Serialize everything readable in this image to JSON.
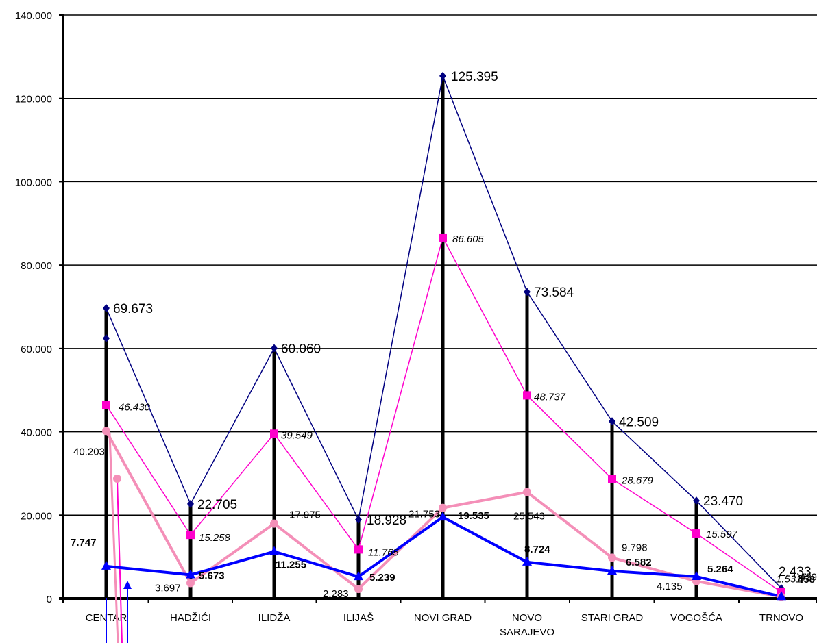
{
  "chart_data": {
    "type": "line",
    "title": "",
    "xlabel": "",
    "ylabel": "",
    "ylim": [
      0,
      140000
    ],
    "yticks": [
      "0",
      "20.000",
      "40.000",
      "60.000",
      "80.000",
      "100.000",
      "120.000",
      "140.000"
    ],
    "ytick_values": [
      0,
      20000,
      40000,
      60000,
      80000,
      100000,
      120000,
      140000
    ],
    "grid": true,
    "legend": "none",
    "categories": [
      "CENTAR",
      "HADŽIĆI",
      "ILIDŽA",
      "ILIJAŠ",
      "NOVI GRAD",
      "NOVO SARAJEVO",
      "STARI GRAD",
      "VOGOŠĆA",
      "TRNOVO"
    ],
    "category_lines": [
      [
        "CENTAR"
      ],
      [
        "HADŽIĆI"
      ],
      [
        "ILIDŽA"
      ],
      [
        "ILIJAŠ"
      ],
      [
        "NOVI GRAD"
      ],
      [
        "NOVO",
        "SARAJEVO"
      ],
      [
        "STARI GRAD"
      ],
      [
        "VOGOŠĆA"
      ],
      [
        "TRNOVO"
      ]
    ],
    "series": [
      {
        "key": "navy",
        "color": "#000080",
        "marker": "diamond",
        "values": [
          69673,
          22705,
          60060,
          18928,
          125395,
          73584,
          42509,
          23470,
          2433
        ],
        "labels": [
          "69.673",
          "22.705",
          "60.060",
          "18.928",
          "125.395",
          "73.584",
          "42.509",
          "23.470",
          "2.433"
        ],
        "label_style": "large"
      },
      {
        "key": "magenta",
        "color": "#ff00cc",
        "marker": "square",
        "values": [
          46430,
          15258,
          39549,
          11765,
          86605,
          48737,
          28679,
          15597,
          1531
        ],
        "labels": [
          "46.430",
          "15.258",
          "39.549",
          "11.765",
          "86.605",
          "48.737",
          "28.679",
          "15.597",
          "1.531"
        ],
        "label_style": "italic"
      },
      {
        "key": "pink",
        "color": "#f48fb8",
        "marker": "circle",
        "values": [
          40203,
          3697,
          17975,
          2283,
          21753,
          25543,
          9798,
          4135,
          429
        ],
        "labels": [
          "40.203",
          "3.697",
          "17.975",
          "2.283",
          "21.753",
          "25.543",
          "9.798",
          "4.135",
          "429"
        ],
        "label_style": "normal"
      },
      {
        "key": "blue",
        "color": "#0000ff",
        "marker": "triangle",
        "values": [
          7747,
          5673,
          11255,
          5239,
          19535,
          8724,
          6582,
          5264,
          458
        ],
        "labels": [
          "7.747",
          "5.673",
          "11.255",
          "5.239",
          "19.535",
          "8.724",
          "6.582",
          "5.264",
          "458"
        ],
        "label_style": "bold"
      }
    ]
  }
}
